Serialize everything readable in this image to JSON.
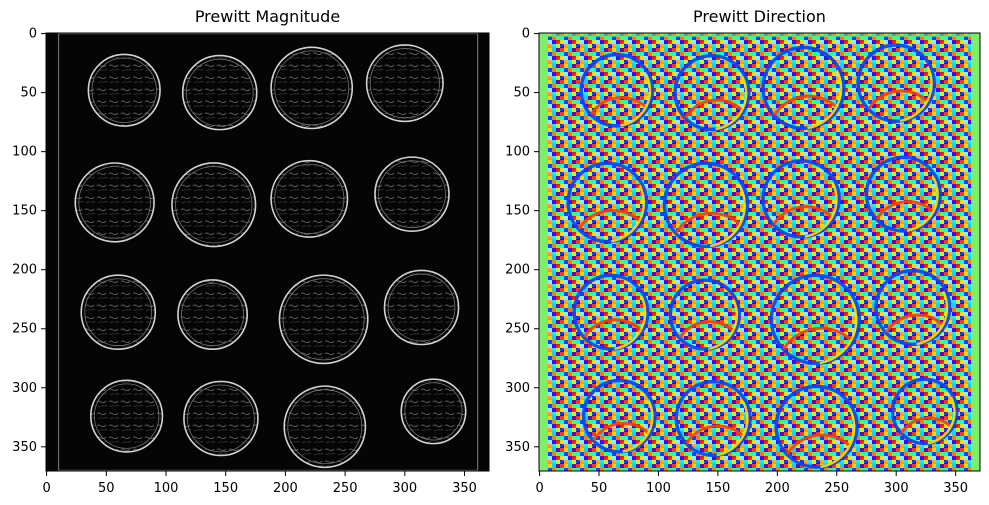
{
  "figure": {
    "panels": [
      {
        "title": "Prewitt Magnitude",
        "colormap": "gray",
        "x_ticks": [
          0,
          50,
          100,
          150,
          200,
          250,
          300,
          350
        ],
        "y_ticks": [
          0,
          50,
          100,
          150,
          200,
          250,
          300,
          350
        ],
        "x_range": [
          -0.5,
          370.5
        ],
        "y_range": [
          -0.5,
          370.5
        ],
        "contents": "edge-magnitude map of 16 coins arranged in a 4x4 grid on a dark background"
      },
      {
        "title": "Prewitt Direction",
        "colormap": "jet",
        "x_ticks": [
          0,
          50,
          100,
          150,
          200,
          250,
          300,
          350
        ],
        "y_ticks": [
          0,
          50,
          100,
          150,
          200,
          250,
          300,
          350
        ],
        "x_range": [
          -0.5,
          370.5
        ],
        "y_range": [
          -0.5,
          370.5
        ],
        "contents": "edge-direction map of the same 16 coins, rendered in a rainbow colormap with green side borders"
      }
    ]
  }
}
